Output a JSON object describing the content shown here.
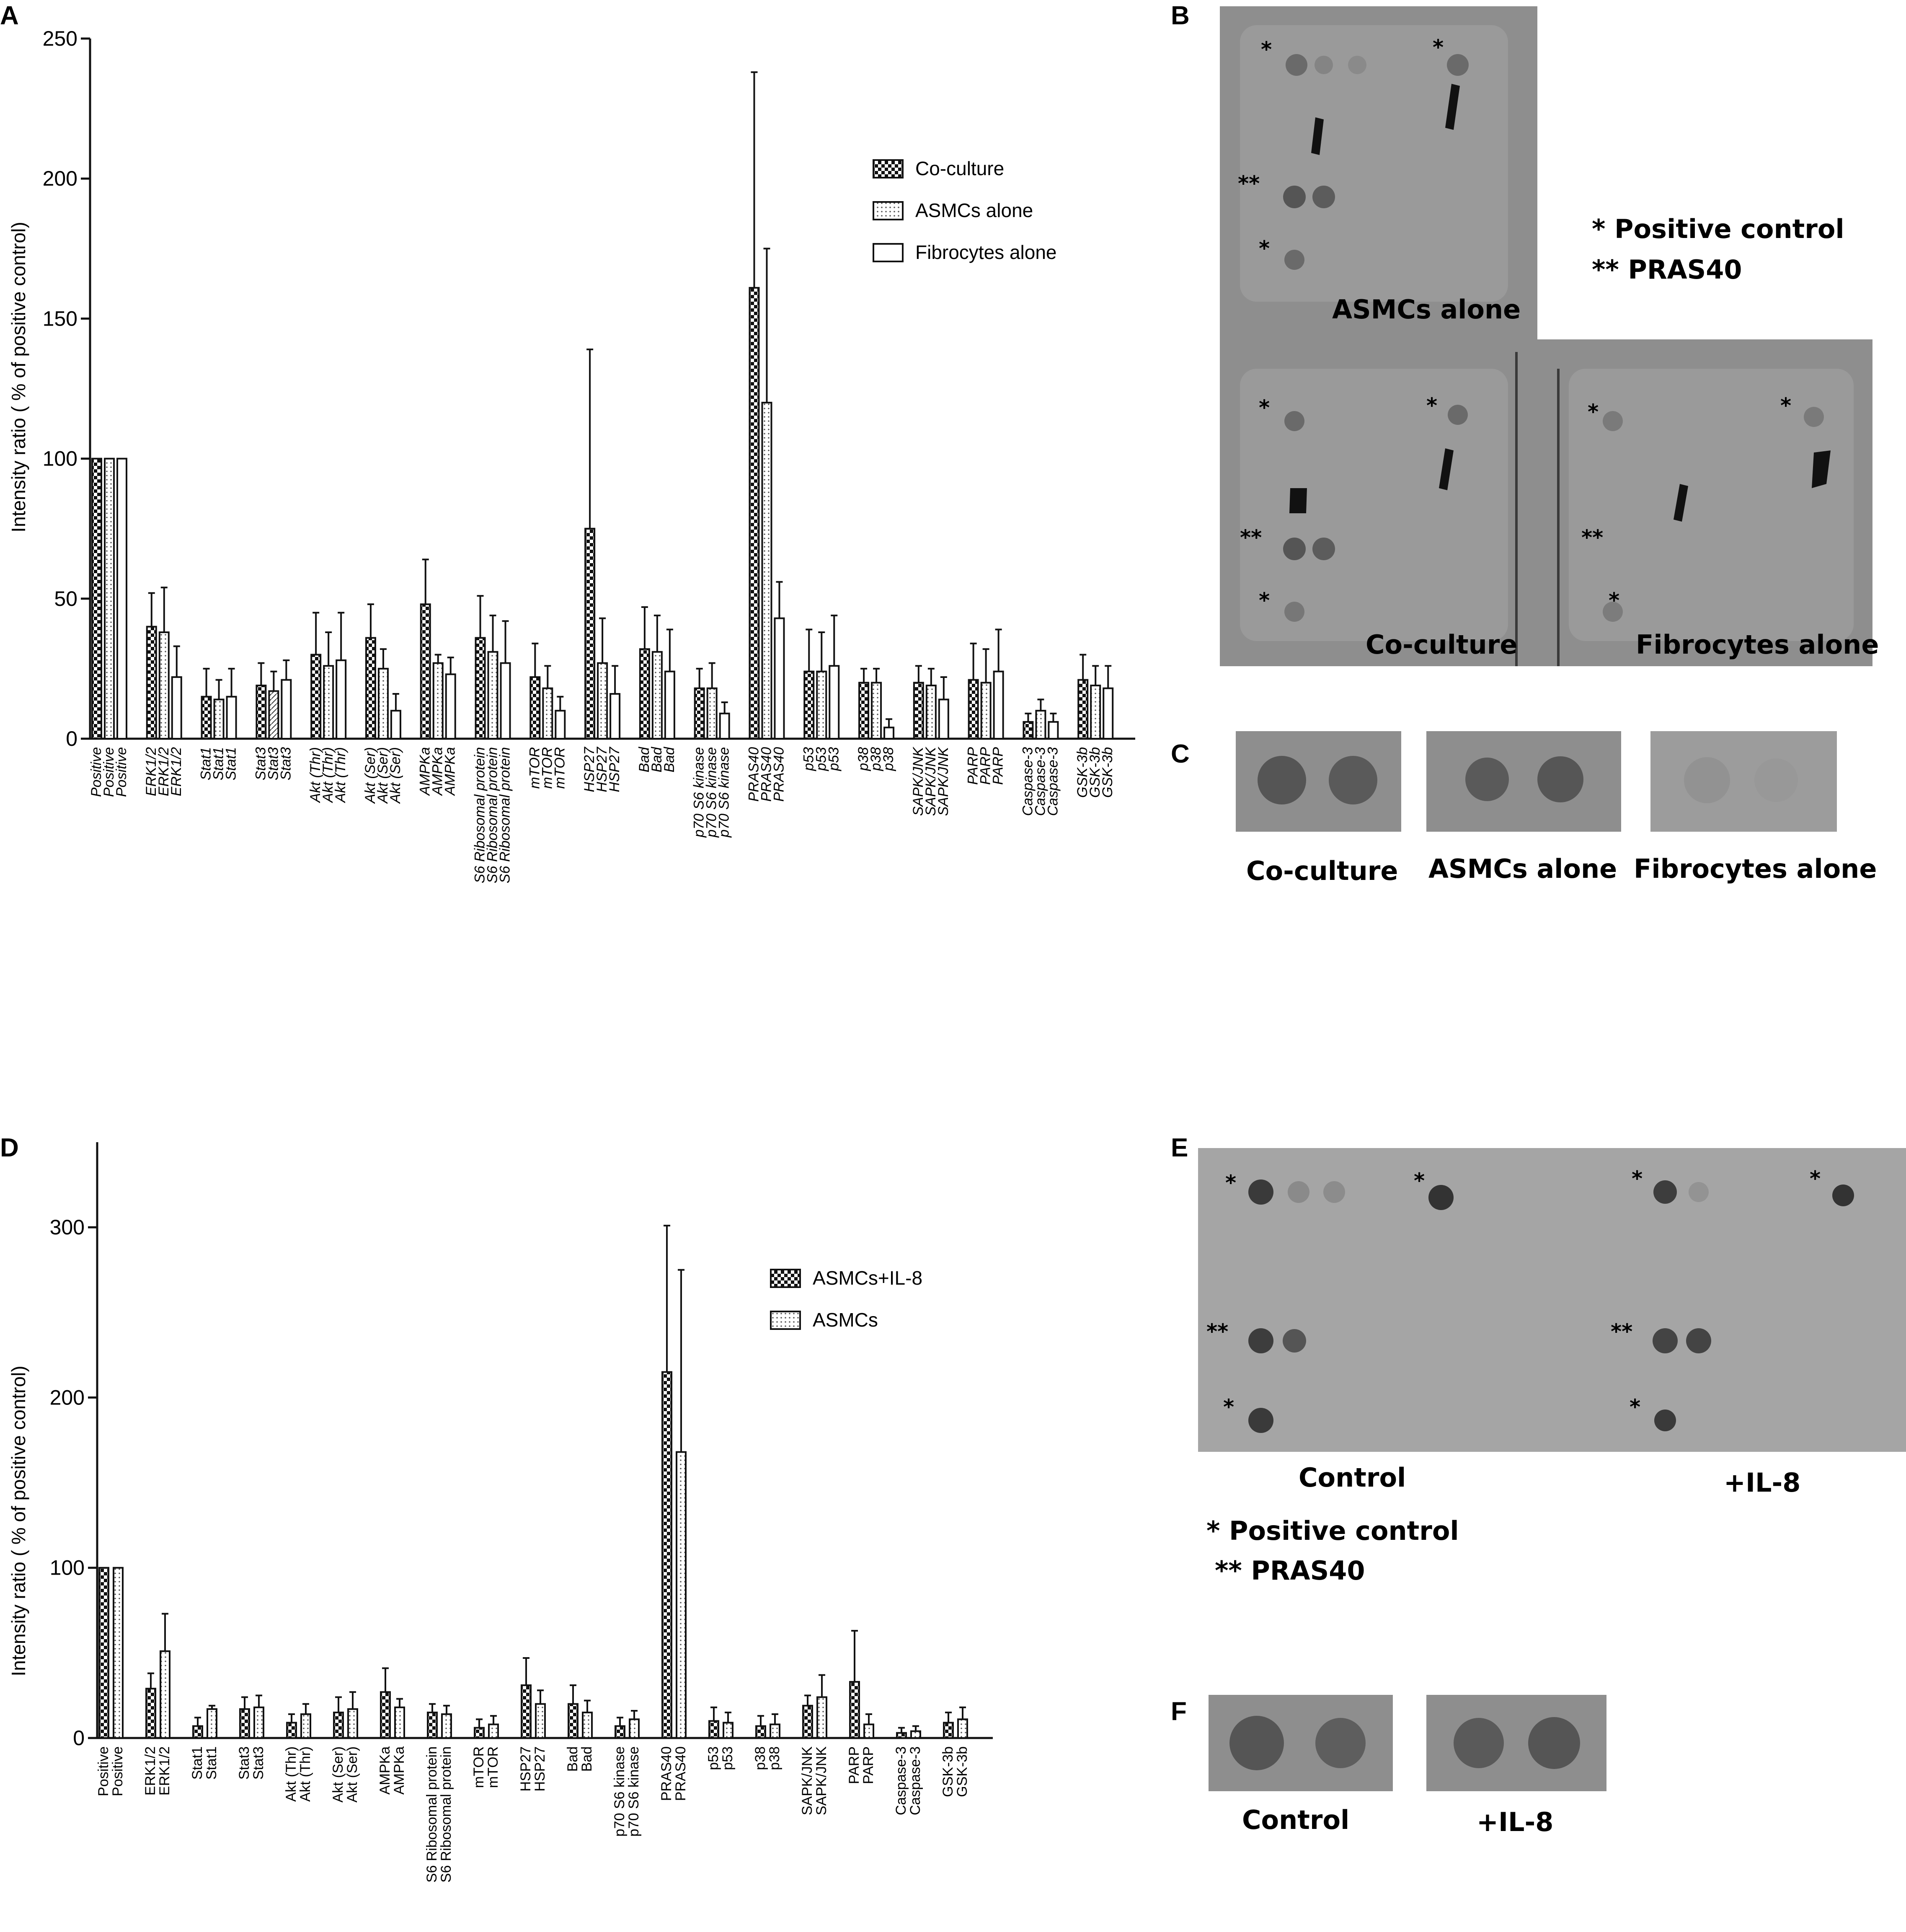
{
  "panels": {
    "A": "A",
    "B": "B",
    "C": "C",
    "D": "D",
    "E": "E",
    "F": "F"
  },
  "colors": {
    "axis": "#111111",
    "bar_stroke": "#111111",
    "blot_bg": "#8c8c8c",
    "blot_spot": "#4a4a4a",
    "e_blot_bg": "#b2b2b2",
    "e_spot": "#3a3a3a"
  },
  "chart_data": [
    {
      "id": "A",
      "type": "bar",
      "ylabel": "Intensity ratio ( % of positive control)",
      "ylim": [
        0,
        250
      ],
      "yticks": [
        0,
        50,
        100,
        150,
        200,
        250
      ],
      "tick_labels_italic": true,
      "categories": [
        "Positive",
        "ERK1/2",
        "Stat1",
        "Stat3",
        "Akt (Thr)",
        "Akt (Ser)",
        "AMPKa",
        "S6 Ribosomal protein",
        "mTOR",
        "HSP27",
        "Bad",
        "p70 S6 kinase",
        "PRAS40",
        "p53",
        "p38",
        "SAPK/JNK",
        "PARP",
        "Caspase-3",
        "GSK-3b"
      ],
      "series": [
        {
          "name": "Co-culture",
          "pattern": "checker",
          "values": [
            100,
            40,
            15,
            19,
            30,
            36,
            48,
            36,
            22,
            75,
            32,
            18,
            161,
            24,
            20,
            20,
            21,
            6,
            21
          ],
          "err": [
            0,
            12,
            10,
            8,
            15,
            12,
            16,
            15,
            12,
            64,
            15,
            7,
            77,
            15,
            5,
            6,
            13,
            3,
            9
          ]
        },
        {
          "name": "ASMCs alone",
          "pattern": "dots",
          "values": [
            100,
            38,
            14,
            17,
            26,
            25,
            27,
            31,
            18,
            27,
            31,
            18,
            120,
            24,
            20,
            19,
            20,
            10,
            19
          ],
          "err": [
            0,
            16,
            7,
            7,
            12,
            7,
            3,
            13,
            8,
            16,
            13,
            9,
            55,
            14,
            5,
            6,
            12,
            4,
            7
          ]
        },
        {
          "name": "Fibrocytes alone",
          "pattern": "plain",
          "values": [
            100,
            22,
            15,
            21,
            28,
            10,
            23,
            27,
            10,
            16,
            24,
            9,
            43,
            26,
            4,
            14,
            24,
            6,
            18
          ],
          "err": [
            0,
            11,
            10,
            7,
            17,
            6,
            6,
            15,
            5,
            10,
            15,
            4,
            13,
            18,
            3,
            8,
            15,
            3,
            8
          ]
        }
      ]
    },
    {
      "id": "D",
      "type": "bar",
      "ylabel": "Intensity ratio ( % of positive control)",
      "ylim": [
        0,
        350
      ],
      "yticks": [
        0,
        100,
        200,
        300
      ],
      "tick_labels_italic": false,
      "categories": [
        "Positive",
        "ERK1/2",
        "Stat1",
        "Stat3",
        "Akt (Thr)",
        "Akt (Ser)",
        "AMPKa",
        "S6 Ribosomal protein",
        "mTOR",
        "HSP27",
        "Bad",
        "p70 S6 kinase",
        "PRAS40",
        "p53",
        "p38",
        "SAPK/JNK",
        "PARP",
        "Caspase-3",
        "GSK-3b"
      ],
      "series": [
        {
          "name": "ASMCs+IL-8",
          "pattern": "checker",
          "values": [
            100,
            29,
            7,
            17,
            9,
            15,
            27,
            15,
            6,
            31,
            20,
            7,
            215,
            10,
            7,
            19,
            33,
            3,
            9
          ],
          "err": [
            0,
            9,
            5,
            7,
            5,
            9,
            14,
            5,
            5,
            16,
            11,
            5,
            86,
            8,
            6,
            6,
            30,
            3,
            6
          ]
        },
        {
          "name": "ASMCs",
          "pattern": "dots",
          "values": [
            100,
            51,
            17,
            18,
            14,
            17,
            18,
            14,
            8,
            20,
            15,
            11,
            168,
            9,
            8,
            24,
            8,
            4,
            11
          ],
          "err": [
            0,
            22,
            2,
            7,
            6,
            10,
            5,
            5,
            5,
            8,
            7,
            5,
            107,
            6,
            6,
            13,
            6,
            3,
            7
          ]
        }
      ]
    }
  ],
  "blot_B": {
    "legend_line1": "* Positive control",
    "legend_line2": "** PRAS40",
    "labels": [
      "ASMCs alone",
      "Co-culture",
      "Fibrocytes alone"
    ],
    "star1": "*",
    "star2": "**"
  },
  "blot_C": {
    "labels": [
      "Co-culture",
      "ASMCs alone",
      "Fibrocytes alone"
    ]
  },
  "blot_E": {
    "labels": [
      "Control",
      "+IL-8"
    ],
    "legend_line1": "* Positive control",
    "legend_line2": "** PRAS40",
    "star1": "*",
    "star2": "**"
  },
  "blot_F": {
    "labels": [
      "Control",
      "+IL-8"
    ]
  }
}
